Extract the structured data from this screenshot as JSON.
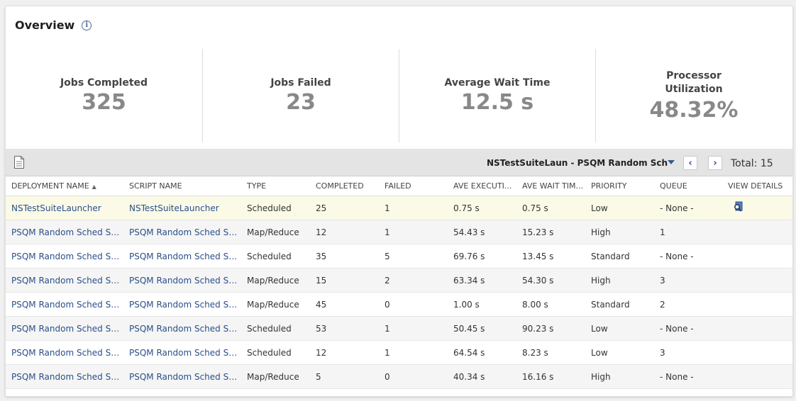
{
  "overview": {
    "title": "Overview",
    "info_icon": "info-icon",
    "stats": [
      {
        "label": "Jobs Completed",
        "value": "325"
      },
      {
        "label": "Jobs Failed",
        "value": "23"
      },
      {
        "label": "Average Wait Time",
        "value": "12.5 s"
      },
      {
        "label": "Processor Utilization",
        "value": "48.32%"
      }
    ]
  },
  "toolbar": {
    "export_icon": "document-icon",
    "selector_value": "NSTestSuiteLaun - PSQM Random Sch",
    "dropdown_icon": "caret-down-icon",
    "prev_icon": "chevron-left-icon",
    "next_icon": "chevron-right-icon",
    "prev_glyph": "‹",
    "next_glyph": "›",
    "total": "Total: 15"
  },
  "table": {
    "sort_glyph": "▲",
    "headers": {
      "deployment": "DEPLOYMENT NAME",
      "script": "SCRIPT NAME",
      "type": "TYPE",
      "completed": "COMPLETED",
      "failed": "FAILED",
      "ave_exec": "AVE EXECUTI...",
      "ave_wait": "AVE WAIT TIM...",
      "priority": "PRIORITY",
      "queue": "QUEUE",
      "view": "VIEW DETAILS"
    },
    "rows": [
      {
        "deployment": "NSTestSuiteLauncher",
        "script": "NSTestSuiteLauncher",
        "type": "Scheduled",
        "completed": "25",
        "failed": "1",
        "ave_exec": "0.75 s",
        "ave_wait": "0.75 s",
        "priority": "Low",
        "queue": "- None -"
      },
      {
        "deployment": "PSQM Random Sched Sc...",
        "script": "PSQM Random Sched Sc...",
        "type": "Map/Reduce",
        "completed": "12",
        "failed": "1",
        "ave_exec": "54.43 s",
        "ave_wait": "15.23 s",
        "priority": "High",
        "queue": "1"
      },
      {
        "deployment": "PSQM Random Sched Sc...",
        "script": "PSQM Random Sched Sc...",
        "type": "Scheduled",
        "completed": "35",
        "failed": "5",
        "ave_exec": "69.76 s",
        "ave_wait": "13.45 s",
        "priority": "Standard",
        "queue": "- None -"
      },
      {
        "deployment": "PSQM Random Sched Sc...",
        "script": "PSQM Random Sched Sc...",
        "type": "Map/Reduce",
        "completed": "15",
        "failed": "2",
        "ave_exec": "63.34 s",
        "ave_wait": "54.30 s",
        "priority": "High",
        "queue": "3"
      },
      {
        "deployment": "PSQM Random Sched Sc...",
        "script": "PSQM Random Sched Sc...",
        "type": "Map/Reduce",
        "completed": "45",
        "failed": "0",
        "ave_exec": "1.00 s",
        "ave_wait": "8.00 s",
        "priority": "Standard",
        "queue": "2"
      },
      {
        "deployment": "PSQM Random Sched Sc...",
        "script": "PSQM Random Sched Sc...",
        "type": "Scheduled",
        "completed": "53",
        "failed": "1",
        "ave_exec": "50.45 s",
        "ave_wait": "90.23 s",
        "priority": "Low",
        "queue": "- None -"
      },
      {
        "deployment": "PSQM Random Sched Sc...",
        "script": "PSQM Random Sched Sc...",
        "type": "Scheduled",
        "completed": "12",
        "failed": "1",
        "ave_exec": "64.54 s",
        "ave_wait": "8.23 s",
        "priority": "Low",
        "queue": "3"
      },
      {
        "deployment": "PSQM Random Sched Sc...",
        "script": "PSQM Random Sched Sc...",
        "type": "Map/Reduce",
        "completed": "5",
        "failed": "0",
        "ave_exec": "40.34 s",
        "ave_wait": "16.16 s",
        "priority": "High",
        "queue": "- None -"
      }
    ]
  },
  "colors": {
    "link": "#2a4f8a",
    "stat_value": "#888888",
    "selected_row": "#fafae6",
    "toolbar_bg": "#e4e4e4"
  }
}
